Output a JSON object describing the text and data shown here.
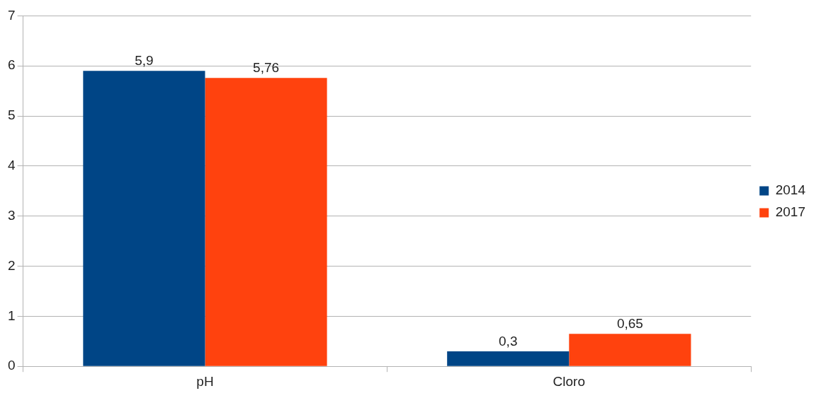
{
  "chart_data": {
    "type": "bar",
    "categories": [
      "pH",
      "Cloro"
    ],
    "series": [
      {
        "name": "2014",
        "color": "#004586",
        "values": [
          5.9,
          0.3
        ],
        "value_labels": [
          "5,9",
          "0,3"
        ]
      },
      {
        "name": "2017",
        "color": "#ff420e",
        "values": [
          5.76,
          0.65
        ],
        "value_labels": [
          "5,76",
          "0,65"
        ]
      }
    ],
    "ylim": [
      0,
      7
    ],
    "yticks": [
      0,
      1,
      2,
      3,
      4,
      5,
      6,
      7
    ],
    "grid": "y",
    "legend": "right"
  }
}
